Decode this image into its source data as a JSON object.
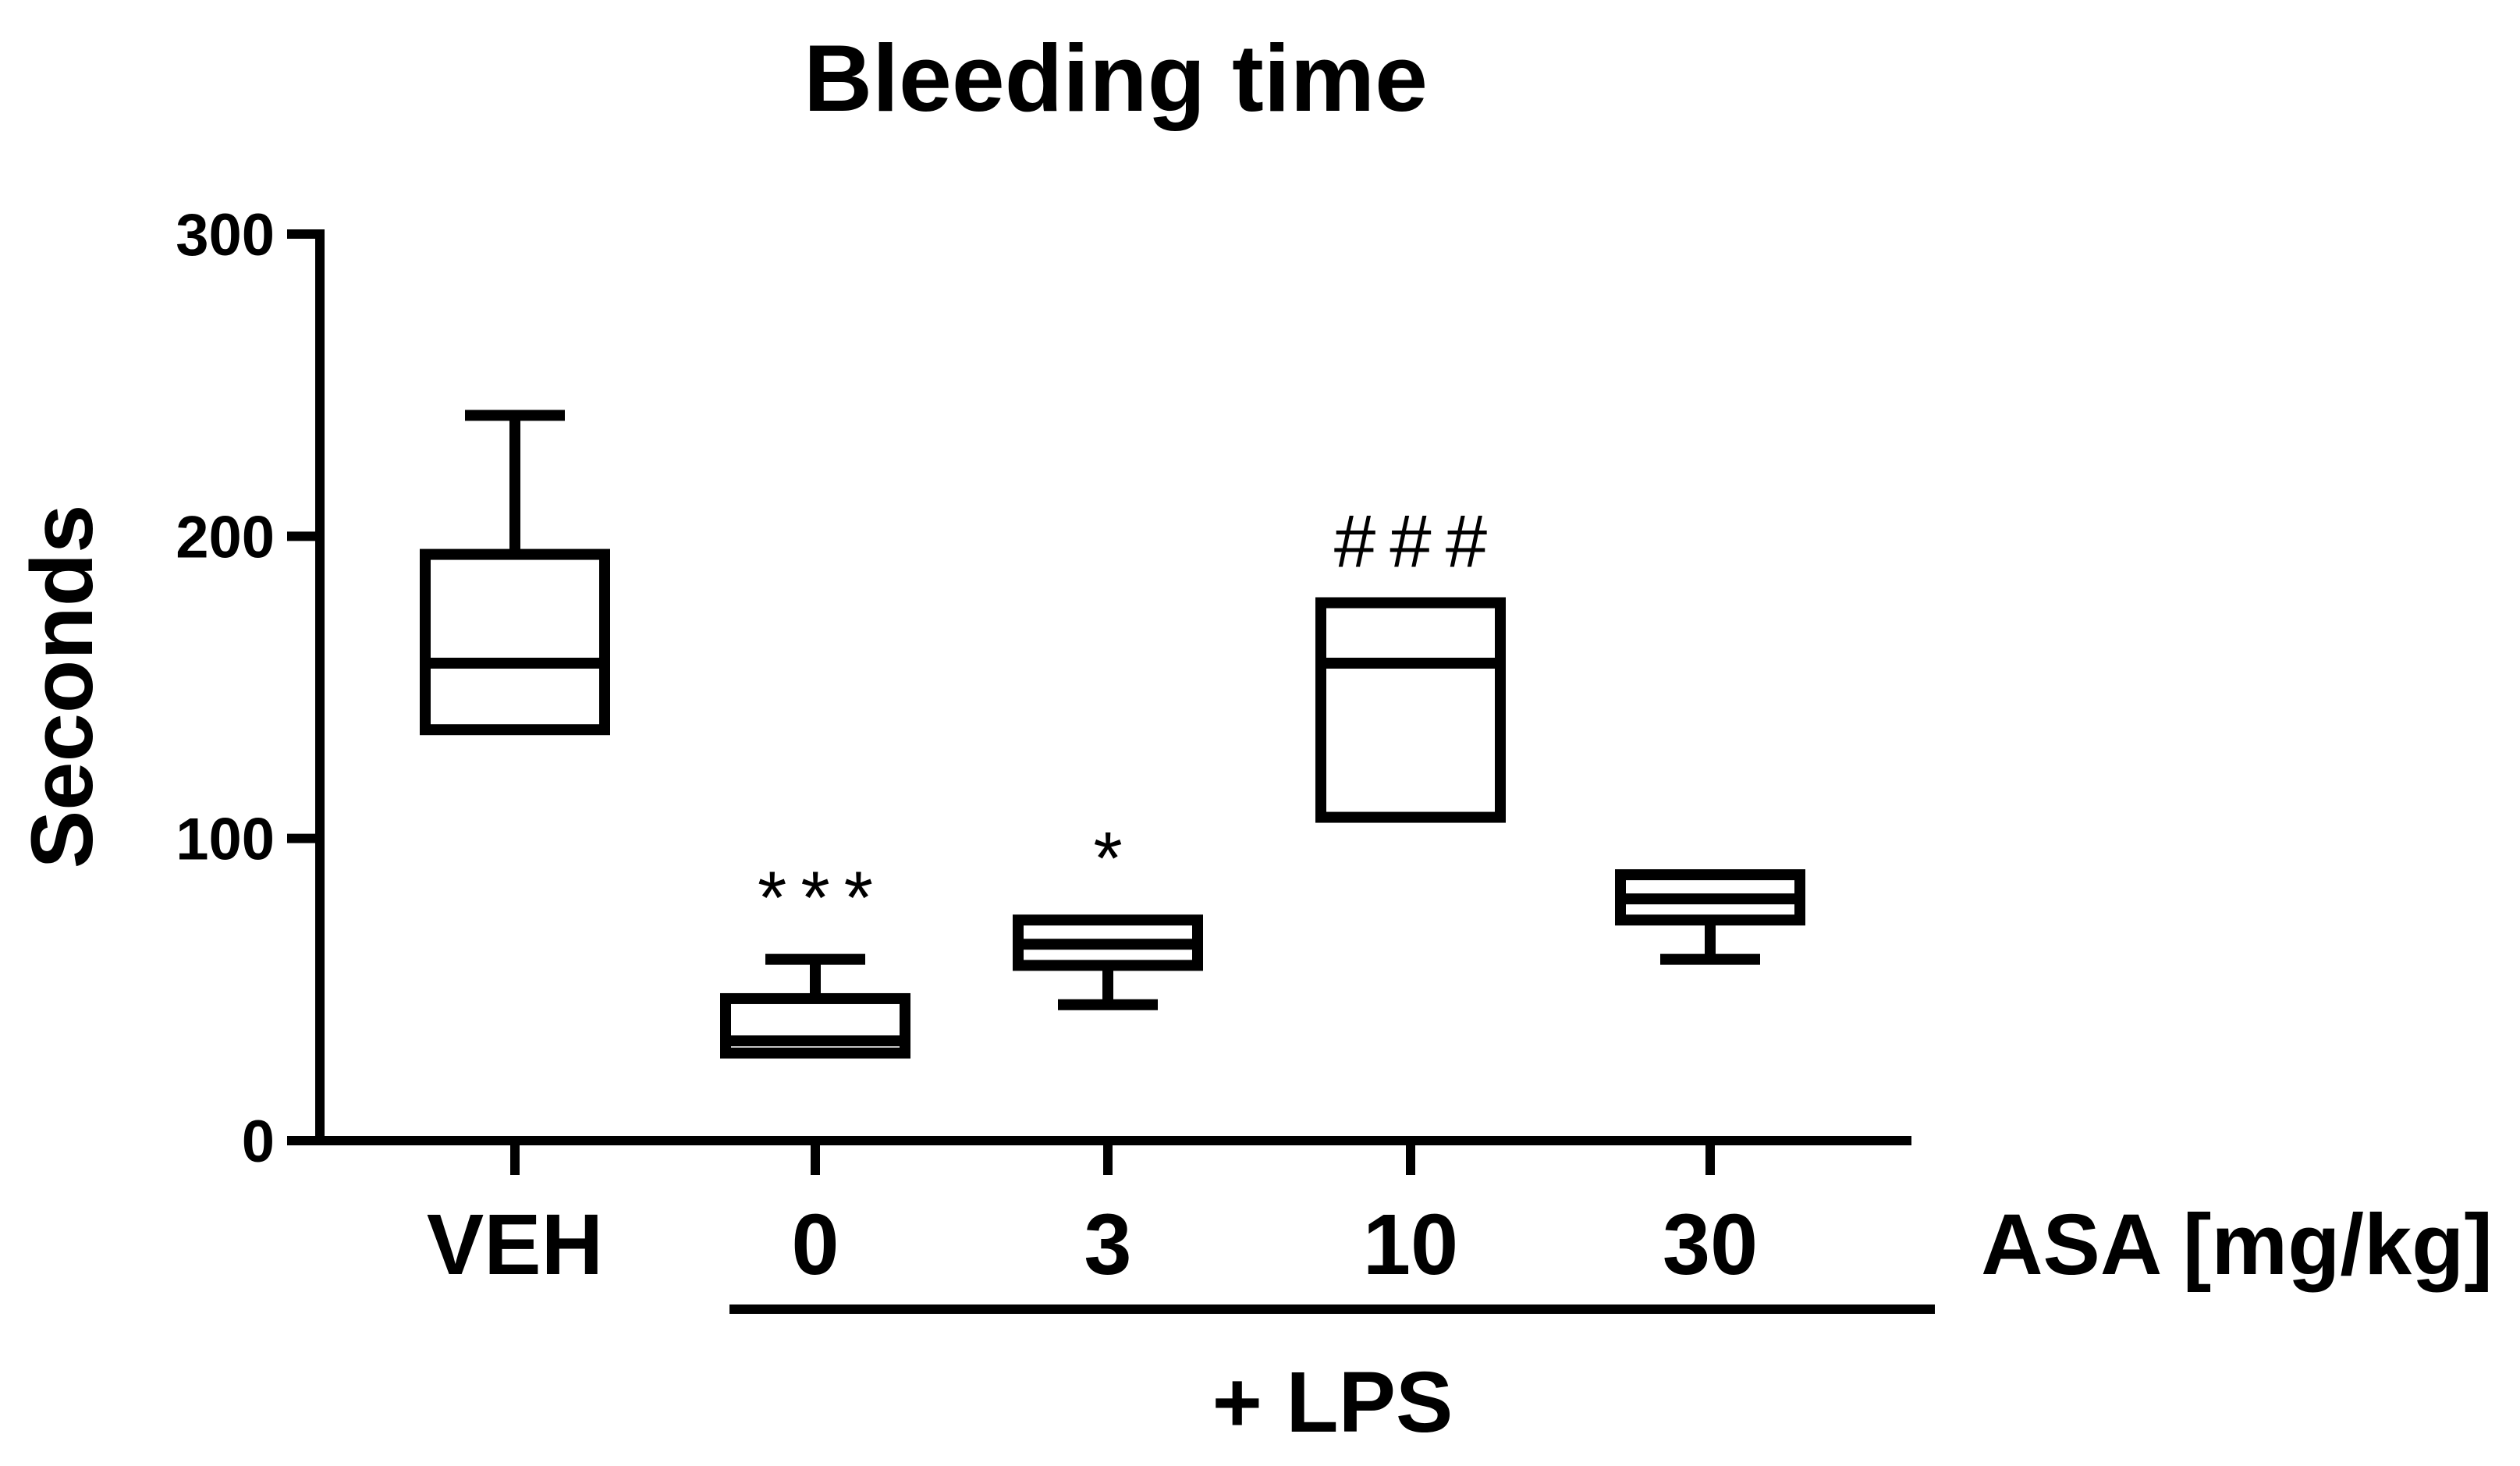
{
  "chart_data": {
    "type": "box",
    "title": "Bleeding time",
    "ylabel": "Seconds",
    "xlabel": "ASA [mg/kg]",
    "group_label": "+ LPS",
    "ylim": [
      0,
      300
    ],
    "yticks": [
      "0",
      "100",
      "200",
      "300"
    ],
    "ytick_values": [
      0,
      100,
      200,
      300
    ],
    "grid": false,
    "legend": "none",
    "categories": [
      "VEH",
      "0",
      "3",
      "10",
      "30"
    ],
    "group_categories": [
      "0",
      "3",
      "10",
      "30"
    ],
    "boxes": [
      {
        "category": "VEH",
        "whisker_low": 136,
        "q1": 136,
        "median": 158,
        "q3": 194,
        "whisker_high": 240,
        "annotation": ""
      },
      {
        "category": "0",
        "whisker_low": 29,
        "q1": 29,
        "median": 33,
        "q3": 47,
        "whisker_high": 60,
        "annotation": "***"
      },
      {
        "category": "3",
        "whisker_low": 45,
        "q1": 58,
        "median": 65,
        "q3": 73,
        "whisker_high": 73,
        "annotation": "*"
      },
      {
        "category": "10",
        "whisker_low": 107,
        "q1": 107,
        "median": 158,
        "q3": 178,
        "whisker_high": 178,
        "annotation": "###"
      },
      {
        "category": "30",
        "whisker_low": 60,
        "q1": 73,
        "median": 80,
        "q3": 88,
        "whisker_high": 88,
        "annotation": ""
      }
    ],
    "colors": {
      "stroke": "#000000",
      "background": "#ffffff"
    }
  }
}
